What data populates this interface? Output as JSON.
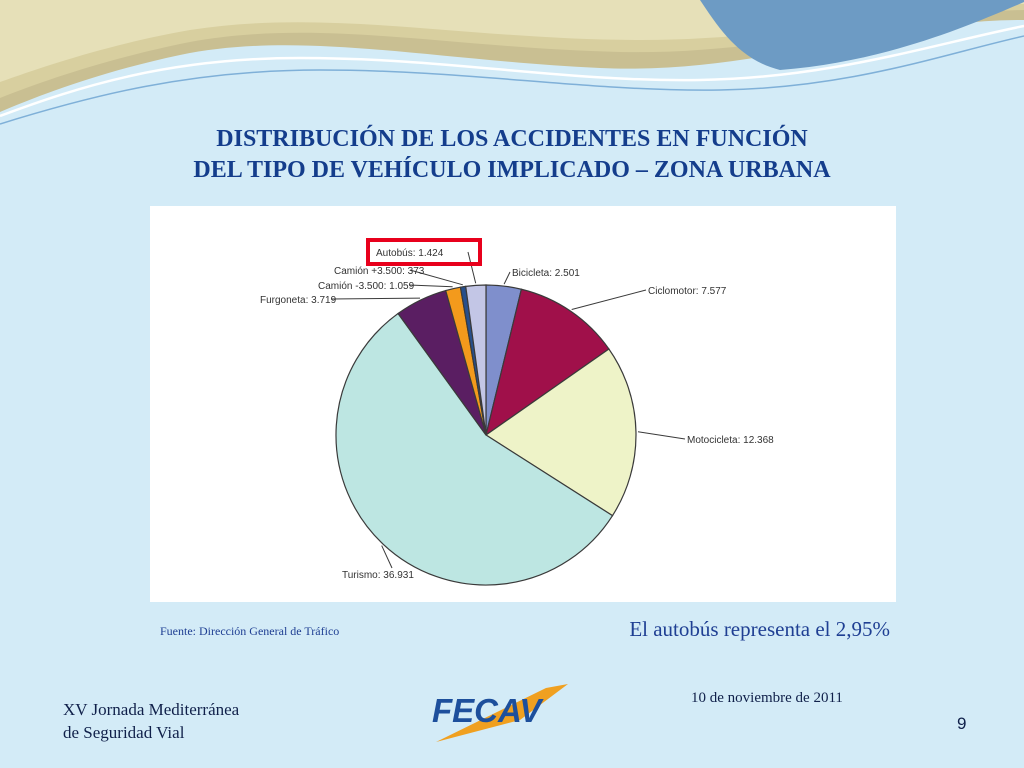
{
  "slide": {
    "title_line1": "DISTRIBUCIÓN DE LOS ACCIDENTES EN FUNCIÓN",
    "title_line2": "DEL TIPO DE VEHÍCULO IMPLICADO – ZONA URBANA",
    "source": "Fuente: Dirección General de Tráfico",
    "note": "El autobús representa el 2,95%",
    "footer_line1": "XV Jornada Mediterránea",
    "footer_line2": "de Seguridad Vial",
    "date": "10 de noviembre de 2011",
    "page_number": "9",
    "logo_text": "FECAV",
    "colors": {
      "background": "#d3ebf7",
      "title": "#143d8c",
      "highlight_box": "#e8001c",
      "logo_blue": "#1d4f9c",
      "logo_orange": "#f0a020"
    }
  },
  "chart_data": {
    "type": "pie",
    "title": "",
    "slices": [
      {
        "name": "Bicicleta",
        "label": "Bicicleta: 2.501",
        "value": 2501,
        "color": "#7f8fcc"
      },
      {
        "name": "Ciclomotor",
        "label": "Ciclomotor: 7.577",
        "value": 7577,
        "color": "#a0104a"
      },
      {
        "name": "Motocicleta",
        "label": "Motocicleta: 12.368",
        "value": 12368,
        "color": "#eef3c8"
      },
      {
        "name": "Turismo",
        "label": "Turismo: 36.931",
        "value": 36931,
        "color": "#bde6e2"
      },
      {
        "name": "Furgoneta",
        "label": "Furgoneta: 3.719",
        "value": 3719,
        "color": "#5a1e62"
      },
      {
        "name": "Camión -3.500",
        "label": "Camión -3.500: 1.059",
        "value": 1059,
        "color": "#f39a1c"
      },
      {
        "name": "Camión +3.500",
        "label": "Camión +3.500: 373",
        "value": 373,
        "color": "#274f8c"
      },
      {
        "name": "Autobús",
        "label": "Autobús: 1.424",
        "value": 1424,
        "color": "#c3c6e6"
      }
    ],
    "highlighted": "Autobús"
  }
}
